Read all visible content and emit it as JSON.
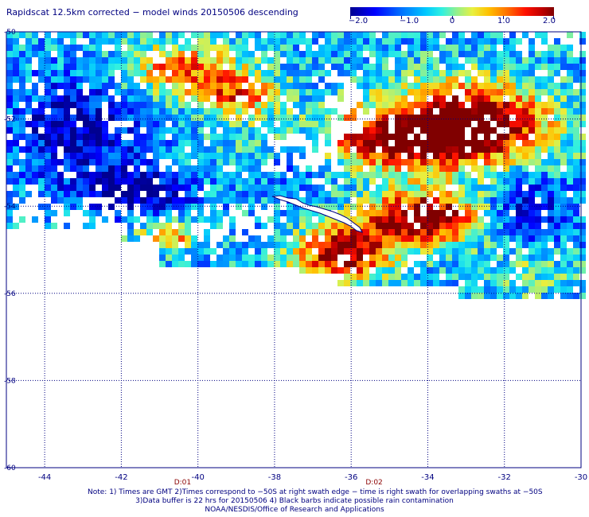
{
  "title": "Rapidscat 12.5km corrected − model winds 20150506 descending",
  "colorbar": {
    "labels": [
      "−2.0",
      "−1.0",
      "0",
      "1.0",
      "2.0"
    ],
    "min": -2.0,
    "max": 2.0
  },
  "map": {
    "lon_labels": [
      "-44",
      "-42",
      "-40",
      "-38",
      "-36",
      "-34",
      "-32",
      "-30"
    ],
    "lat_labels": [
      "-50",
      "-52",
      "-54",
      "-56",
      "-58",
      "-60"
    ],
    "lon_range": [
      -45,
      -30
    ],
    "lat_range": [
      -60,
      -50
    ],
    "grid": true,
    "time_labels": [
      "D:01",
      "D:02"
    ],
    "time_label_color": "#8b0000"
  },
  "notes": {
    "line1": "Note: 1) Times are GMT 2)Times correspond to −50S at right swath edge − time is right swath for overlapping swaths at −50S",
    "line2": "3)Data buffer is 22 hrs for 20150506 4) Black barbs indicate possible rain contamination",
    "line3": "NOAA/NESDIS/Office of Research and Applications"
  }
}
